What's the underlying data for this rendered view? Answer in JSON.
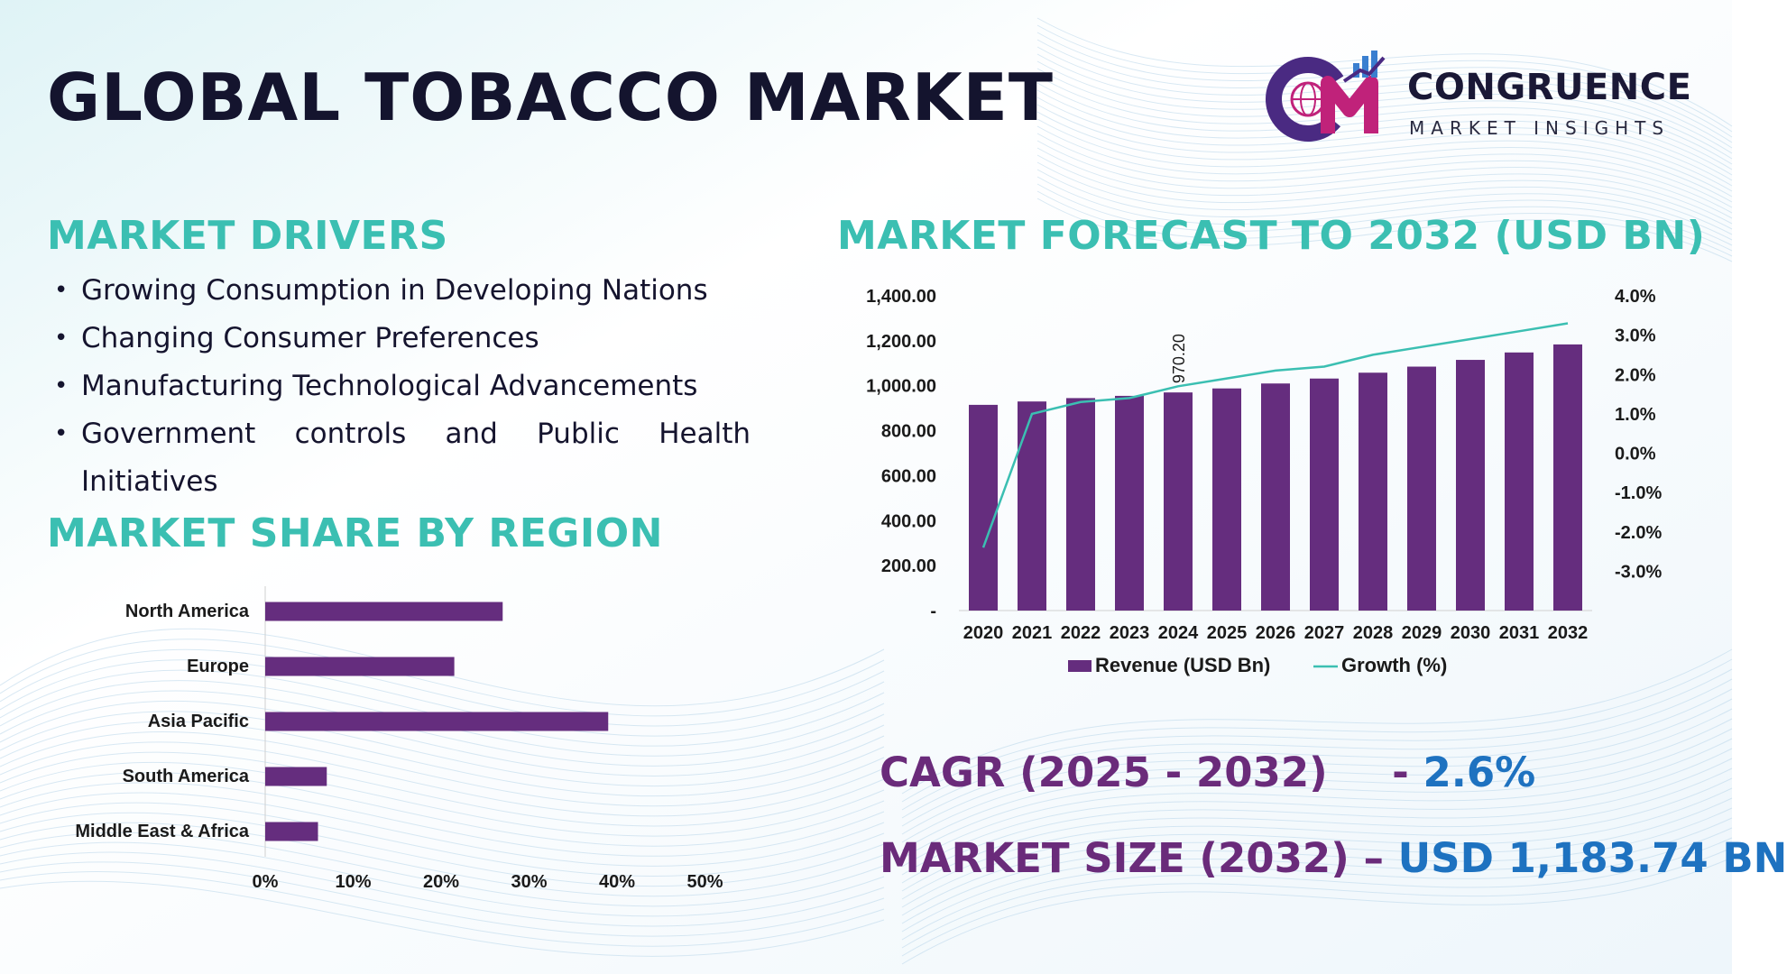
{
  "title": "GLOBAL TOBACCO MARKET",
  "logo": {
    "name": "CONGRUENCE",
    "subtitle": "MARKET INSIGHTS",
    "mark_text": "CM",
    "colors": {
      "c": "#4a2a82",
      "m": "#c0227a",
      "bars": "#3a7fd0"
    }
  },
  "sections": {
    "drivers_title": "MARKET DRIVERS",
    "region_title": "MARKET SHARE BY REGION",
    "forecast_title": "MARKET FORECAST TO 2032 (USD BN)"
  },
  "drivers": [
    "Growing Consumption in Developing Nations",
    "Changing Consumer Preferences",
    "Manufacturing Technological Advancements",
    "Government controls and Public Health Initiatives"
  ],
  "stats": {
    "cagr_label": "CAGR (2025 - 2032)",
    "cagr_sep": "-",
    "cagr_value": "2.6%",
    "size_label": "MARKET SIZE (2032)",
    "size_sep": "–",
    "size_value": "USD 1,183.74 BN"
  },
  "colors": {
    "accent_teal": "#3bbfb2",
    "bar_purple": "#652d7e",
    "growth_line": "#3bbfb2",
    "stat_label": "#6a2b7a",
    "stat_value": "#1e72c0"
  },
  "chart_data": [
    {
      "type": "bar",
      "orientation": "horizontal",
      "categories": [
        "North America",
        "Europe",
        "Asia Pacific",
        "South America",
        "Middle East & Africa"
      ],
      "values": [
        27,
        21.5,
        39,
        7,
        6
      ],
      "xlim": [
        0,
        50
      ],
      "x_ticks": [
        "0%",
        "10%",
        "20%",
        "30%",
        "40%",
        "50%"
      ],
      "grid": false
    },
    {
      "type": "bar",
      "categories": [
        "2020",
        "2021",
        "2022",
        "2023",
        "2024",
        "2025",
        "2026",
        "2027",
        "2028",
        "2029",
        "2030",
        "2031",
        "2032"
      ],
      "series": [
        {
          "name": "Revenue (USD Bn)",
          "type": "bar",
          "axis": "left",
          "values": [
            915,
            930,
            945,
            955,
            970.2,
            988,
            1010,
            1032,
            1058,
            1085,
            1115,
            1148,
            1183.74
          ]
        },
        {
          "name": "Growth (%)",
          "type": "line",
          "axis": "right",
          "values": [
            -2.4,
            1.0,
            1.3,
            1.4,
            1.7,
            1.9,
            2.1,
            2.2,
            2.5,
            2.7,
            2.9,
            3.1,
            3.3
          ]
        }
      ],
      "data_labels": [
        {
          "category": "2024",
          "text": "970.20"
        }
      ],
      "y_left": {
        "ylim": [
          0,
          1400
        ],
        "ticks": [
          "-",
          "200.00",
          "400.00",
          "600.00",
          "800.00",
          "1,000.00",
          "1,200.00",
          "1,400.00"
        ]
      },
      "y_right": {
        "ylim": [
          -4,
          4
        ],
        "ticks": [
          "-3.0%",
          "-2.0%",
          "-1.0%",
          "0.0%",
          "1.0%",
          "2.0%",
          "3.0%",
          "4.0%"
        ]
      },
      "legend": "bottom",
      "grid": false
    }
  ]
}
